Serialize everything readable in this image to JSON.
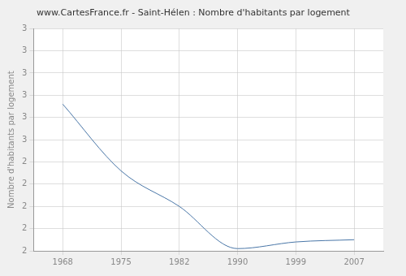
{
  "chart_data": {
    "type": "line",
    "title": "www.CartesFrance.fr - Saint-Hélen : Nombre d'habitants par logement",
    "y_label": "Nombre d'habitants par logement",
    "categories": [
      "1968",
      "1975",
      "1982",
      "1990",
      "1999",
      "2007"
    ],
    "values": [
      2.66,
      2.36,
      2.2,
      2.01,
      2.04,
      2.05
    ],
    "color": "#4a77a8",
    "ylim": [
      2,
      3
    ],
    "yticks": [
      {
        "value": 2.0,
        "label": "2"
      },
      {
        "value": 2.1,
        "label": "2"
      },
      {
        "value": 2.2,
        "label": "2"
      },
      {
        "value": 2.3,
        "label": "2"
      },
      {
        "value": 2.4,
        "label": "2"
      },
      {
        "value": 2.5,
        "label": "3"
      },
      {
        "value": 2.6,
        "label": "3"
      },
      {
        "value": 2.7,
        "label": "3"
      },
      {
        "value": 2.8,
        "label": "3"
      },
      {
        "value": 2.9,
        "label": "3"
      },
      {
        "value": 3.0,
        "label": "3"
      }
    ],
    "grid": true
  }
}
